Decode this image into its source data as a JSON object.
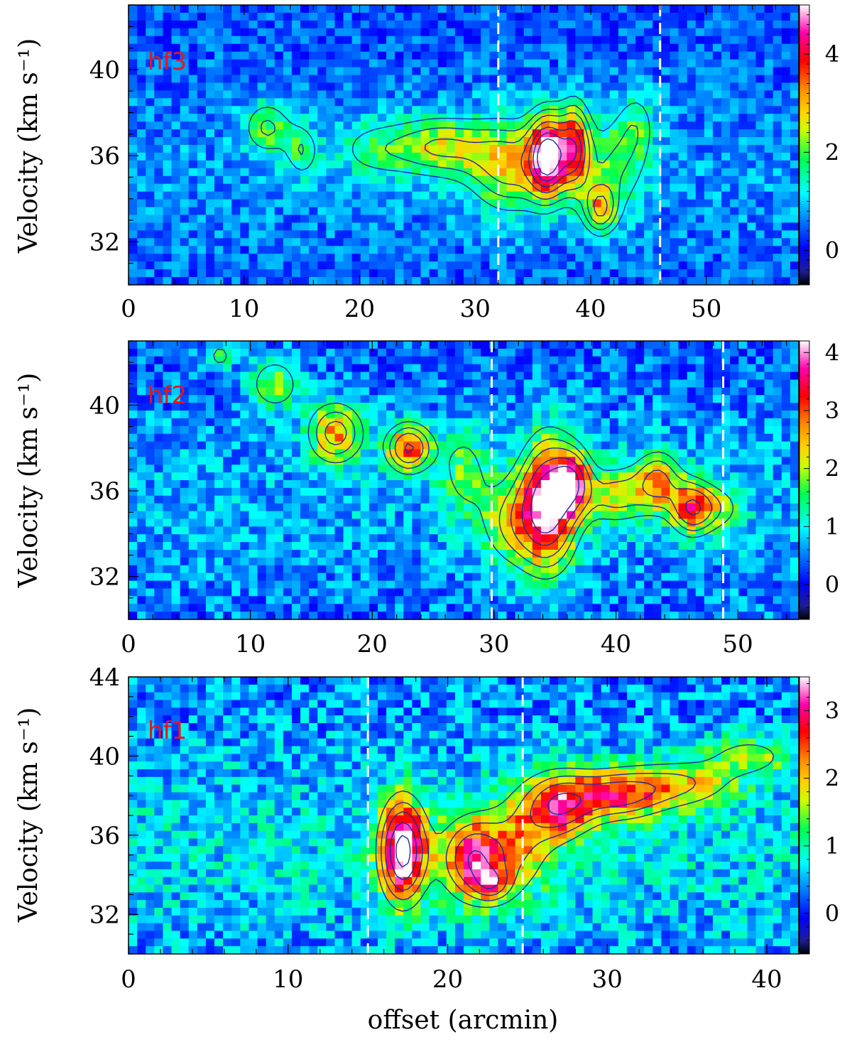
{
  "chart_data": [
    {
      "type": "heatmap",
      "panel_label": "hf3",
      "ylabel": "Velocity (km s⁻¹)",
      "xlabel": "",
      "xlim": [
        0,
        58
      ],
      "ylim": [
        30,
        43
      ],
      "x_ticks": [
        0,
        10,
        20,
        30,
        40,
        50
      ],
      "y_ticks": [
        32,
        36,
        40
      ],
      "colorbar": {
        "range": [
          -0.7,
          5.0
        ],
        "ticks": [
          0,
          2,
          4
        ]
      },
      "dashed_lines_x": [
        32,
        46
      ],
      "contour_levels": [
        0.8,
        1.3,
        1.8,
        2.4,
        3.0,
        3.6,
        4.2
      ],
      "emission_components": [
        {
          "x": 12.0,
          "v": 37.3,
          "sx": 1.5,
          "sv": 0.9,
          "amp": 1.4
        },
        {
          "x": 15.0,
          "v": 36.2,
          "sx": 1.0,
          "sv": 0.9,
          "amp": 1.2
        },
        {
          "x": 21.0,
          "v": 36.3,
          "sx": 2.5,
          "sv": 1.0,
          "amp": 0.9
        },
        {
          "x": 27.0,
          "v": 36.4,
          "sx": 3.0,
          "sv": 1.0,
          "amp": 1.8
        },
        {
          "x": 33.0,
          "v": 35.5,
          "sx": 2.5,
          "sv": 1.5,
          "amp": 2.0
        },
        {
          "x": 36.3,
          "v": 36.0,
          "sx": 1.1,
          "sv": 1.3,
          "amp": 4.2
        },
        {
          "x": 38.6,
          "v": 36.4,
          "sx": 0.9,
          "sv": 1.4,
          "amp": 2.9
        },
        {
          "x": 40.8,
          "v": 33.5,
          "sx": 1.0,
          "sv": 0.8,
          "amp": 2.2
        },
        {
          "x": 42.0,
          "v": 35.5,
          "sx": 2.0,
          "sv": 1.6,
          "amp": 1.3
        },
        {
          "x": 44.0,
          "v": 37.5,
          "sx": 1.2,
          "sv": 1.2,
          "amp": 0.9
        }
      ]
    },
    {
      "type": "heatmap",
      "panel_label": "hf2",
      "ylabel": "Velocity (km s⁻¹)",
      "xlabel": "",
      "xlim": [
        0,
        55
      ],
      "ylim": [
        30,
        43
      ],
      "x_ticks": [
        0,
        10,
        20,
        30,
        40,
        50
      ],
      "y_ticks": [
        32,
        36,
        40
      ],
      "colorbar": {
        "range": [
          -0.6,
          4.2
        ],
        "ticks": [
          0,
          1,
          2,
          3,
          4
        ]
      },
      "dashed_lines_x": [
        29.8,
        48.8
      ],
      "contour_levels": [
        0.8,
        1.3,
        1.8,
        2.5,
        3.2
      ],
      "emission_components": [
        {
          "x": 7.5,
          "v": 42.3,
          "sx": 0.8,
          "sv": 0.5,
          "amp": 1.0
        },
        {
          "x": 12.0,
          "v": 41.0,
          "sx": 1.5,
          "sv": 0.9,
          "amp": 1.3
        },
        {
          "x": 17.0,
          "v": 38.7,
          "sx": 1.6,
          "sv": 1.0,
          "amp": 2.1
        },
        {
          "x": 23.0,
          "v": 38.0,
          "sx": 1.3,
          "sv": 0.8,
          "amp": 2.6
        },
        {
          "x": 27.5,
          "v": 37.0,
          "sx": 1.5,
          "sv": 1.5,
          "amp": 1.0
        },
        {
          "x": 31.5,
          "v": 34.5,
          "sx": 2.0,
          "sv": 1.5,
          "amp": 1.3
        },
        {
          "x": 34.5,
          "v": 35.5,
          "sx": 1.6,
          "sv": 2.0,
          "amp": 3.6
        },
        {
          "x": 36.5,
          "v": 36.5,
          "sx": 1.0,
          "sv": 1.0,
          "amp": 2.0
        },
        {
          "x": 40.0,
          "v": 35.8,
          "sx": 2.0,
          "sv": 1.0,
          "amp": 1.5
        },
        {
          "x": 43.5,
          "v": 36.5,
          "sx": 1.3,
          "sv": 1.0,
          "amp": 1.8
        },
        {
          "x": 46.2,
          "v": 35.2,
          "sx": 1.2,
          "sv": 0.9,
          "amp": 2.3
        },
        {
          "x": 48.5,
          "v": 35.2,
          "sx": 1.5,
          "sv": 0.8,
          "amp": 1.0
        }
      ]
    },
    {
      "type": "heatmap",
      "panel_label": "hf1",
      "ylabel": "Velocity (km s⁻¹)",
      "xlabel": "offset (arcmin)",
      "xlim": [
        0,
        42
      ],
      "ylim": [
        30,
        44
      ],
      "x_ticks": [
        0,
        10,
        20,
        30,
        40
      ],
      "y_ticks": [
        32,
        36,
        40,
        44
      ],
      "colorbar": {
        "range": [
          -0.6,
          3.5
        ],
        "ticks": [
          0,
          1,
          2,
          3
        ]
      },
      "dashed_lines_x": [
        15,
        24.7
      ],
      "contour_levels": [
        0.8,
        1.3,
        1.8,
        2.4,
        3.0
      ],
      "emission_components": [
        {
          "x": 17.2,
          "v": 35.2,
          "sx": 1.0,
          "sv": 1.8,
          "amp": 3.3
        },
        {
          "x": 21.5,
          "v": 34.8,
          "sx": 1.4,
          "sv": 1.5,
          "amp": 2.3
        },
        {
          "x": 22.8,
          "v": 33.5,
          "sx": 0.8,
          "sv": 0.6,
          "amp": 1.2
        },
        {
          "x": 24.5,
          "v": 35.5,
          "sx": 1.5,
          "sv": 2.0,
          "amp": 1.2
        },
        {
          "x": 27.0,
          "v": 37.5,
          "sx": 1.5,
          "sv": 1.2,
          "amp": 2.1
        },
        {
          "x": 30.5,
          "v": 38.0,
          "sx": 2.0,
          "sv": 0.9,
          "amp": 1.8
        },
        {
          "x": 34.5,
          "v": 38.6,
          "sx": 2.5,
          "sv": 0.9,
          "amp": 1.3
        },
        {
          "x": 39.0,
          "v": 40.0,
          "sx": 2.0,
          "sv": 0.8,
          "amp": 1.0
        }
      ]
    }
  ]
}
